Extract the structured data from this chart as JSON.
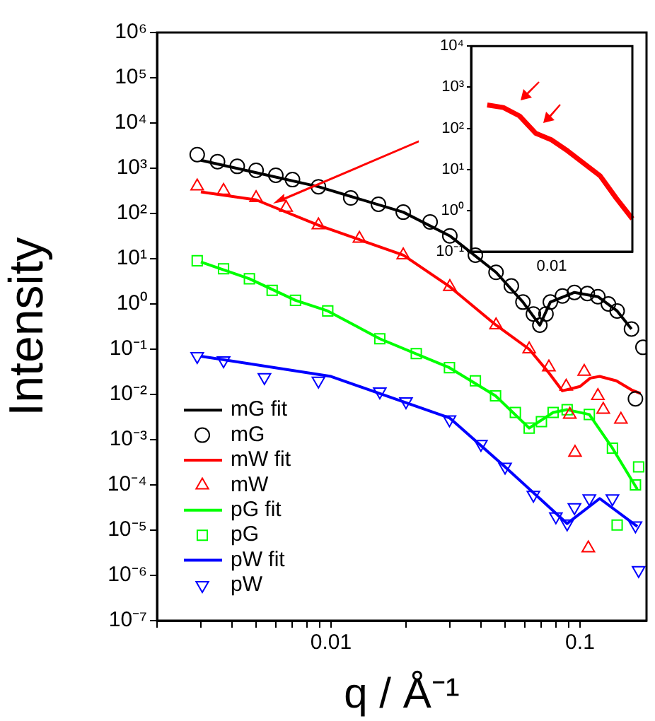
{
  "chart_data": [
    {
      "type": "scatter",
      "xlabel": "q / Å⁻¹",
      "ylabel": "Intensity",
      "log": "xy",
      "grid": false,
      "legend": "bottom left",
      "xlim": [
        0.002,
        0.185
      ],
      "ylim": [
        1e-07,
        1000000.0
      ],
      "xticks": [
        {
          "value": 0.002,
          "label": null
        },
        {
          "value": 0.003,
          "label": null
        },
        {
          "value": 0.004,
          "label": null
        },
        {
          "value": 0.005,
          "label": null
        },
        {
          "value": 0.006,
          "label": null
        },
        {
          "value": 0.007,
          "label": null
        },
        {
          "value": 0.008,
          "label": null
        },
        {
          "value": 0.009,
          "label": null
        },
        0.01,
        {
          "value": 0.02,
          "label": null
        },
        {
          "value": 0.03,
          "label": null
        },
        {
          "value": 0.04,
          "label": null
        },
        {
          "value": 0.05,
          "label": null
        },
        {
          "value": 0.06,
          "label": null
        },
        {
          "value": 0.07,
          "label": null
        },
        {
          "value": 0.08,
          "label": null
        },
        {
          "value": 0.09,
          "label": null
        },
        0.1
      ],
      "yticks": [
        {
          "value": 1e-07,
          "label": "10⁻⁷"
        },
        {
          "value": 1e-06,
          "label": "10⁻⁶"
        },
        {
          "value": 1e-05,
          "label": "10⁻⁵"
        },
        {
          "value": 0.0001,
          "label": "10⁻⁴"
        },
        {
          "value": 0.001,
          "label": "10⁻³"
        },
        {
          "value": 0.01,
          "label": "10⁻²"
        },
        {
          "value": 0.1,
          "label": "10⁻¹"
        },
        {
          "value": 1,
          "label": "10⁰"
        },
        {
          "value": 10,
          "label": "10¹"
        },
        {
          "value": 100,
          "label": "10²"
        },
        {
          "value": 1000,
          "label": "10³"
        },
        {
          "value": 10000,
          "label": "10⁴"
        },
        {
          "value": 100000,
          "label": "10⁵"
        },
        {
          "value": 1000000,
          "label": "10⁶"
        }
      ],
      "series": [
        {
          "name": "mG fit",
          "type": "line",
          "color": "#000000",
          "x": [
            0.003,
            0.005,
            0.0089,
            0.0195,
            0.03,
            0.046,
            0.059,
            0.069,
            0.076,
            0.095,
            0.118,
            0.141,
            0.161
          ],
          "values": [
            1500,
            800,
            390,
            107,
            32,
            5,
            1.1,
            0.34,
            1.1,
            1.8,
            1.45,
            0.7,
            0.28
          ]
        },
        {
          "name": "mG",
          "marker": "circle",
          "color": "#000000",
          "x": [
            0.0029,
            0.0035,
            0.0042,
            0.005,
            0.006,
            0.007,
            0.0089,
            0.012,
            0.0155,
            0.0195,
            0.025,
            0.03,
            0.038,
            0.046,
            0.053,
            0.059,
            0.065,
            0.069,
            0.073,
            0.076,
            0.085,
            0.095,
            0.107,
            0.118,
            0.13,
            0.141,
            0.161,
            0.167,
            0.179
          ],
          "values": [
            2000,
            1400,
            1100,
            900,
            700,
            560,
            390,
            220,
            160,
            107,
            65,
            32,
            12,
            5,
            2.5,
            1.1,
            0.6,
            0.34,
            0.6,
            1.1,
            1.5,
            1.8,
            1.7,
            1.45,
            1.0,
            0.7,
            0.28,
            0.008,
            0.11
          ]
        },
        {
          "name": "mW fit",
          "type": "line",
          "color": "#ff0000",
          "x": [
            0.003,
            0.005,
            0.0089,
            0.0195,
            0.03,
            0.046,
            0.0625,
            0.075,
            0.085,
            0.1,
            0.11,
            0.12,
            0.14,
            0.161,
            0.175
          ],
          "values": [
            300,
            200,
            55,
            12,
            2.4,
            0.34,
            0.1,
            0.03,
            0.012,
            0.015,
            0.023,
            0.025,
            0.02,
            0.0126,
            0.0105
          ]
        },
        {
          "name": "mW",
          "marker": "triangle",
          "color": "#ff0000",
          "x": [
            0.0029,
            0.0037,
            0.005,
            0.0066,
            0.0089,
            0.013,
            0.0195,
            0.03,
            0.046,
            0.0625,
            0.075,
            0.088,
            0.091,
            0.0955,
            0.104,
            0.108,
            0.118,
            0.124,
            0.146
          ],
          "values": [
            400,
            320,
            220,
            135,
            55,
            28,
            12,
            2.4,
            0.34,
            0.1,
            0.04,
            0.015,
            0.0036,
            0.00052,
            0.032,
            4e-06,
            0.0093,
            0.0046,
            0.0028
          ]
        },
        {
          "name": "pG fit",
          "type": "line",
          "color": "#00ff00",
          "x": [
            0.003,
            0.0047,
            0.0072,
            0.0097,
            0.0157,
            0.0299,
            0.0458,
            0.0625,
            0.078,
            0.0888,
            0.109,
            0.135,
            0.17
          ],
          "values": [
            8.5,
            3.6,
            1.2,
            0.7,
            0.17,
            0.039,
            0.0093,
            0.0018,
            0.004,
            0.0046,
            0.0036,
            0.00065,
            8e-05
          ]
        },
        {
          "name": "pG",
          "marker": "square",
          "color": "#00ff00",
          "x": [
            0.0029,
            0.0037,
            0.0047,
            0.0058,
            0.0072,
            0.0097,
            0.0157,
            0.022,
            0.0299,
            0.038,
            0.0458,
            0.055,
            0.0625,
            0.07,
            0.078,
            0.0888,
            0.109,
            0.135,
            0.141,
            0.167,
            0.172
          ],
          "values": [
            9,
            6,
            3.6,
            2.0,
            1.2,
            0.7,
            0.17,
            0.08,
            0.039,
            0.02,
            0.0093,
            0.004,
            0.0018,
            0.0025,
            0.004,
            0.0046,
            0.0036,
            0.00065,
            1.3e-05,
            0.0001,
            0.00025
          ]
        },
        {
          "name": "pW fit",
          "type": "line",
          "color": "#0000ff",
          "x": [
            0.003,
            0.01,
            0.03,
            0.05,
            0.0888,
            0.12,
            0.17
          ],
          "values": [
            0.07,
            0.025,
            0.003,
            0.00025,
            1.4e-05,
            5e-05,
            1.2e-05
          ]
        },
        {
          "name": "pW",
          "marker": "triangle-down",
          "color": "#0000ff",
          "x": [
            0.0029,
            0.0037,
            0.0054,
            0.0089,
            0.0157,
            0.02,
            0.0299,
            0.04,
            0.05,
            0.065,
            0.08,
            0.0888,
            0.095,
            0.109,
            0.135,
            0.167,
            0.172
          ],
          "values": [
            0.07,
            0.056,
            0.024,
            0.02,
            0.0115,
            0.007,
            0.0028,
            0.0008,
            0.00025,
            6e-05,
            2e-05,
            1.4e-05,
            3.2e-05,
            5e-05,
            5e-05,
            1.26e-05,
            1.3e-06
          ]
        }
      ]
    },
    {
      "type": "line",
      "log": "y",
      "grid": false,
      "ylim": [
        0.1,
        10000
      ],
      "annotations": [
        "0.01"
      ],
      "categories": [
        null,
        null,
        null,
        null,
        null,
        null,
        null,
        null,
        null,
        null,
        null
      ],
      "yticks": [
        {
          "value": 0.1,
          "label": "10⁻¹"
        },
        {
          "value": 1,
          "label": "10⁰"
        },
        {
          "value": 10,
          "label": "10¹"
        },
        {
          "value": 100,
          "label": "10²"
        },
        {
          "value": 1000,
          "label": "10³"
        },
        {
          "value": 10000,
          "label": "10⁴"
        }
      ],
      "series": [
        {
          "color": "#ff0000",
          "values": [
            null,
            370,
            320,
            200,
            76,
            52,
            28,
            14,
            7,
            2,
            0.63
          ]
        }
      ]
    }
  ]
}
